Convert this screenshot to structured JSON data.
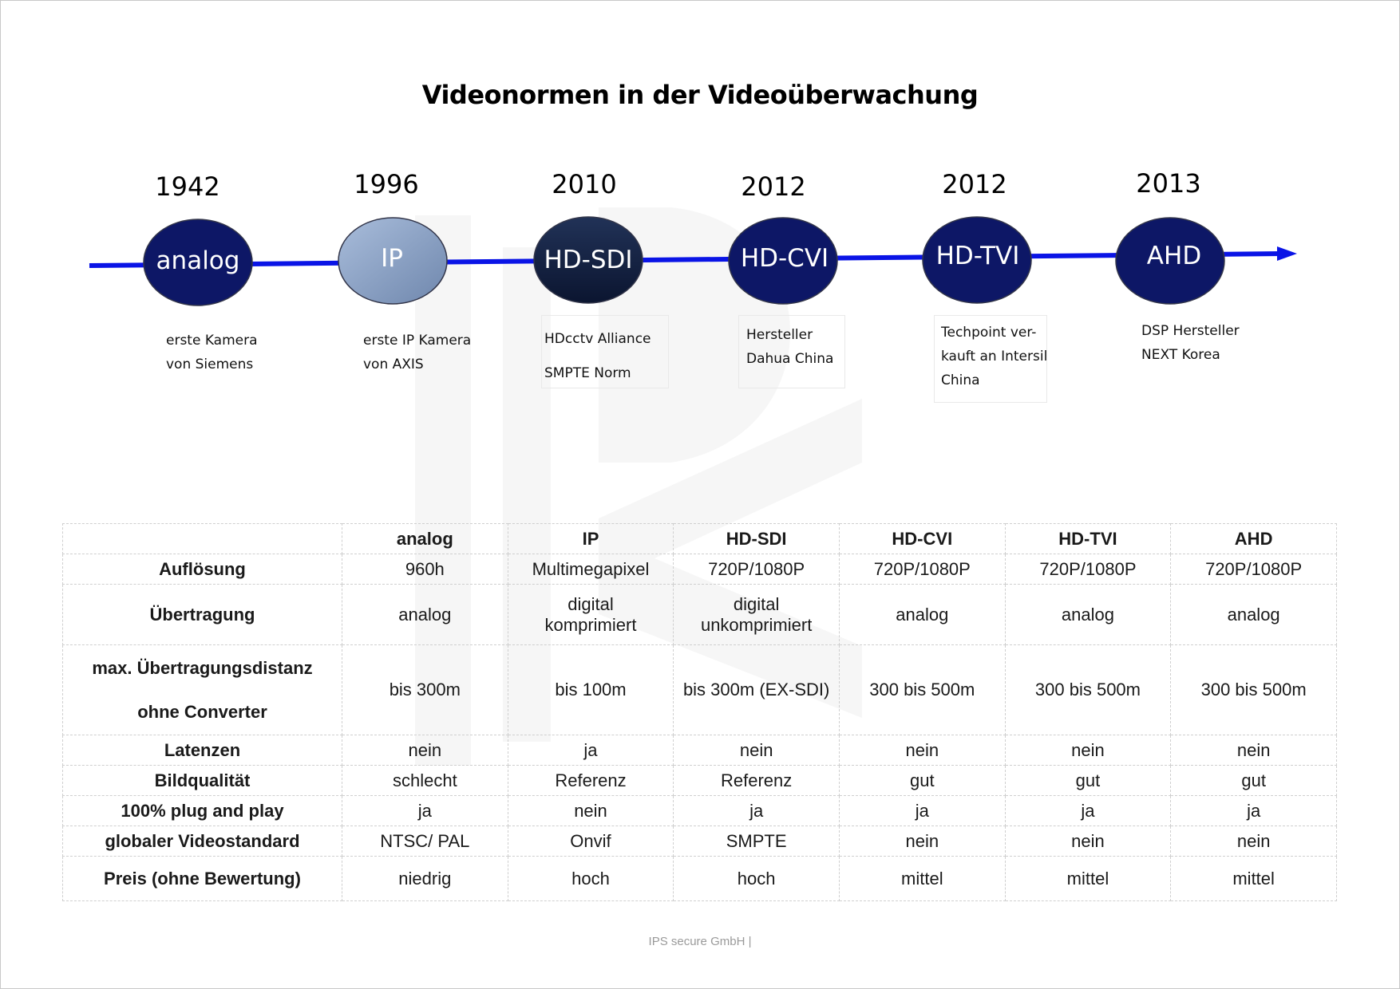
{
  "title": "Videonormen in der Videoüberwachung",
  "timeline": [
    {
      "year": "1942",
      "label": "analog",
      "desc": [
        "erste Kamera",
        "von Siemens"
      ]
    },
    {
      "year": "1996",
      "label": "IP",
      "desc": [
        "erste IP Kamera",
        "von AXIS"
      ]
    },
    {
      "year": "2010",
      "label": "HD-SDI",
      "desc": [
        "HDcctv Alliance",
        "SMPTE Norm"
      ]
    },
    {
      "year": "2012",
      "label": "HD-CVI",
      "desc": [
        "Hersteller",
        "Dahua China"
      ]
    },
    {
      "year": "2012",
      "label": "HD-TVI",
      "desc": [
        "Techpoint ver-",
        "kauft an Intersil",
        "China"
      ]
    },
    {
      "year": "2013",
      "label": "AHD",
      "desc": [
        "DSP Hersteller",
        "NEXT Korea"
      ]
    }
  ],
  "table": {
    "columns": [
      "analog",
      "IP",
      "HD-SDI",
      "HD-CVI",
      "HD-TVI",
      "AHD"
    ],
    "rows": [
      {
        "label": [
          "Auflösung"
        ],
        "cells": [
          "960h",
          "Multimegapixel",
          "720P/1080P",
          "720P/1080P",
          "720P/1080P",
          "720P/1080P"
        ]
      },
      {
        "label": [
          "Übertragung"
        ],
        "cells": [
          "analog",
          "digital komprimiert",
          "digital unkomprimiert",
          "analog",
          "analog",
          "analog"
        ]
      },
      {
        "label": [
          "max. Übertragungsdistanz",
          "ohne Converter"
        ],
        "cells": [
          "bis 300m",
          "bis 100m",
          "bis 300m (EX-SDI)",
          "300 bis 500m",
          "300 bis 500m",
          "300 bis 500m"
        ]
      },
      {
        "label": [
          "Latenzen"
        ],
        "cells": [
          "nein",
          "ja",
          "nein",
          "nein",
          "nein",
          "nein"
        ]
      },
      {
        "label": [
          "Bildqualität"
        ],
        "cells": [
          "schlecht",
          "Referenz",
          "Referenz",
          "gut",
          "gut",
          "gut"
        ]
      },
      {
        "label": [
          "100% plug and play"
        ],
        "cells": [
          "ja",
          "nein",
          "ja",
          "ja",
          "ja",
          "ja"
        ]
      },
      {
        "label": [
          "globaler Videostandard"
        ],
        "cells": [
          "NTSC/ PAL",
          "Onvif",
          "SMPTE",
          "nein",
          "nein",
          "nein"
        ]
      },
      {
        "label": [
          "Preis (ohne Bewertung)"
        ],
        "cells": [
          "niedrig",
          "hoch",
          "hoch",
          "mittel",
          "mittel",
          "mittel"
        ]
      }
    ]
  },
  "footer": "IPS secure GmbH |",
  "colors": {
    "timeline_line": "#0a14e6",
    "node_dark": "#0d1766",
    "node_ip": "#8ba1c4",
    "node_hdsdi": "#13203f"
  }
}
